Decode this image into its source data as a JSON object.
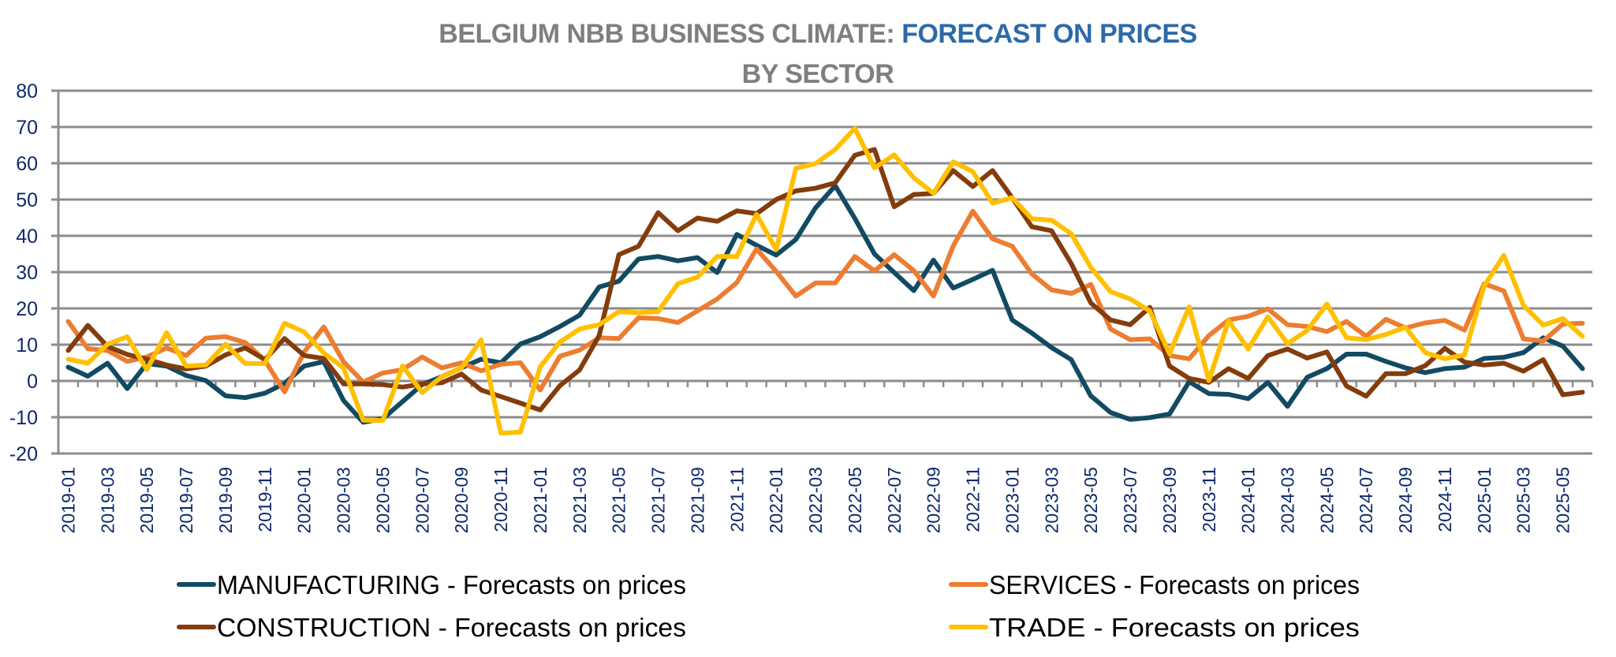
{
  "chart_data": {
    "type": "line",
    "title": {
      "line1_prefix": "BELGIUM  NBB BUSINESS CLIMATE: ",
      "line1_highlight": "FORECAST ON PRICES",
      "line2": "BY SECTOR"
    },
    "colors": {
      "title_gray": "#7f7f7f",
      "title_blue": "#2e6aa8",
      "axis_text": "#0f2a6b",
      "grid": "#8c8c8c"
    },
    "xlabel": "",
    "ylabel": "",
    "ylim": [
      -20,
      80
    ],
    "yticks": [
      -20,
      -10,
      0,
      10,
      20,
      30,
      40,
      50,
      60,
      70,
      80
    ],
    "grid": true,
    "legend_position": "bottom",
    "x_label_every": 2,
    "x": [
      "2019-01",
      "2019-02",
      "2019-03",
      "2019-04",
      "2019-05",
      "2019-06",
      "2019-07",
      "2019-08",
      "2019-09",
      "2019-10",
      "2019-11",
      "2019-12",
      "2020-01",
      "2020-02",
      "2020-03",
      "2020-04",
      "2020-05",
      "2020-06",
      "2020-07",
      "2020-08",
      "2020-09",
      "2020-10",
      "2020-11",
      "2020-12",
      "2021-01",
      "2021-02",
      "2021-03",
      "2021-04",
      "2021-05",
      "2021-06",
      "2021-07",
      "2021-08",
      "2021-09",
      "2021-10",
      "2021-11",
      "2021-12",
      "2022-01",
      "2022-02",
      "2022-03",
      "2022-04",
      "2022-05",
      "2022-06",
      "2022-07",
      "2022-08",
      "2022-09",
      "2022-10",
      "2022-11",
      "2022-12",
      "2023-01",
      "2023-02",
      "2023-03",
      "2023-04",
      "2023-05",
      "2023-06",
      "2023-07",
      "2023-08",
      "2023-09",
      "2023-10",
      "2023-11",
      "2023-12",
      "2024-01",
      "2024-02",
      "2024-03",
      "2024-04",
      "2024-05",
      "2024-06",
      "2024-07",
      "2024-08",
      "2024-09",
      "2024-10",
      "2024-11",
      "2024-12",
      "2025-01",
      "2025-02",
      "2025-03",
      "2025-04",
      "2025-05",
      "2025-06"
    ],
    "series": [
      {
        "name": "MANUFACTURING - Forecasts on prices",
        "color": "#124a63",
        "values": [
          3.8,
          1.3,
          4.9,
          -2.1,
          4.8,
          4.1,
          1.5,
          0.1,
          -4.1,
          -4.6,
          -3.4,
          -0.7,
          4.1,
          5.3,
          -5.4,
          -11.4,
          -10.4,
          -5.7,
          -1.0,
          1.2,
          3.6,
          6.0,
          5.0,
          10.2,
          12.2,
          15.0,
          18.1,
          25.9,
          27.5,
          33.6,
          34.3,
          33.1,
          34.0,
          29.9,
          40.4,
          37.4,
          34.7,
          39.0,
          47.7,
          53.8,
          44.8,
          35.0,
          29.9,
          24.9,
          33.3,
          25.6,
          28.0,
          30.5,
          16.8,
          13.2,
          9.2,
          5.9,
          -4.1,
          -8.7,
          -10.6,
          -10.1,
          -9.1,
          -0.2,
          -3.5,
          -3.7,
          -4.9,
          -0.4,
          -7.0,
          1.0,
          3.4,
          7.4,
          7.4,
          5.4,
          3.6,
          2.3,
          3.4,
          3.8,
          6.2,
          6.5,
          7.8,
          11.9,
          9.6,
          3.4
        ]
      },
      {
        "name": "SERVICES - Forecasts on prices",
        "color": "#ed7d31",
        "values": [
          16.4,
          8.9,
          8.4,
          5.4,
          6.6,
          9.1,
          7.0,
          11.8,
          12.2,
          10.6,
          5.7,
          -3.0,
          8.0,
          14.9,
          5.3,
          -0.3,
          2.2,
          3.1,
          6.6,
          3.6,
          5.0,
          2.8,
          4.6,
          5.0,
          -2.5,
          6.8,
          8.5,
          11.9,
          11.7,
          17.4,
          17.2,
          16.1,
          19.3,
          22.6,
          27.1,
          36.4,
          30.2,
          23.4,
          27.0,
          27.0,
          34.3,
          30.3,
          34.8,
          30.4,
          23.4,
          37.2,
          46.8,
          39.2,
          37.1,
          29.5,
          25.1,
          24.1,
          26.6,
          14.3,
          11.4,
          11.6,
          7.0,
          6.1,
          12.5,
          16.8,
          17.8,
          19.9,
          15.5,
          15.0,
          13.6,
          16.4,
          12.3,
          17.0,
          14.6,
          16.0,
          16.7,
          14.0,
          26.8,
          24.8,
          11.6,
          11.0,
          15.7,
          15.9
        ]
      },
      {
        "name": "CONSTRUCTION - Forecasts on prices",
        "color": "#843c0c",
        "values": [
          8.4,
          15.3,
          9.5,
          7.3,
          6.0,
          4.4,
          3.3,
          4.1,
          7.2,
          9.1,
          5.9,
          11.7,
          7.0,
          6.2,
          -0.8,
          -0.8,
          -1.0,
          -1.7,
          -0.8,
          -0.5,
          1.9,
          -2.5,
          -4.3,
          -6.1,
          -8.0,
          -1.3,
          3.0,
          12.5,
          34.8,
          37.1,
          46.4,
          41.4,
          44.9,
          44.0,
          46.9,
          46.1,
          50.0,
          52.4,
          53.1,
          54.6,
          62.2,
          63.8,
          48.0,
          51.4,
          51.7,
          58.0,
          53.6,
          58.0,
          50.5,
          42.5,
          41.4,
          32.4,
          21.5,
          16.8,
          15.5,
          20.3,
          4.1,
          0.7,
          -0.4,
          3.4,
          0.7,
          7.0,
          8.8,
          6.3,
          8.0,
          -1.4,
          -4.2,
          2.0,
          2.0,
          4.2,
          9.0,
          5.2,
          4.4,
          4.9,
          2.7,
          5.9,
          -3.8,
          -3.1
        ]
      },
      {
        "name": "TRADE - Forecasts on prices",
        "color": "#ffc000",
        "values": [
          6.0,
          4.9,
          10.1,
          12.2,
          3.1,
          13.3,
          4.1,
          4.4,
          10.1,
          4.8,
          4.8,
          15.9,
          13.5,
          7.7,
          3.6,
          -10.8,
          -10.9,
          4.1,
          -3.2,
          1.2,
          3.6,
          11.3,
          -14.4,
          -14.1,
          3.9,
          10.7,
          14.3,
          15.5,
          19.1,
          18.8,
          19.1,
          26.8,
          28.6,
          34.3,
          34.3,
          45.9,
          36.2,
          58.6,
          59.9,
          63.8,
          69.6,
          58.7,
          62.3,
          56.0,
          51.7,
          60.4,
          57.7,
          49.0,
          50.5,
          44.7,
          44.3,
          40.6,
          31.3,
          24.6,
          22.6,
          19.3,
          7.5,
          20.4,
          0.1,
          16.6,
          8.8,
          17.7,
          10.3,
          13.9,
          21.2,
          11.9,
          11.4,
          12.8,
          14.8,
          7.8,
          6.1,
          7.2,
          26.2,
          34.6,
          20.8,
          15.4,
          17.2,
          12.3
        ]
      }
    ],
    "legend_layout": [
      [
        0,
        1
      ],
      [
        2,
        3
      ]
    ]
  }
}
